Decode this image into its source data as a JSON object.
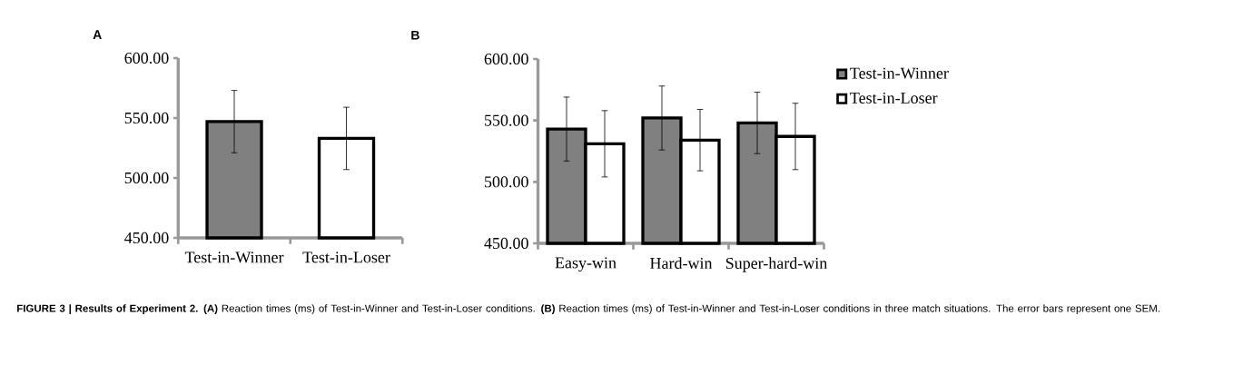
{
  "chart_data": [
    {
      "type": "bar",
      "title": "A",
      "categories": [
        "Test-in-Winner",
        "Test-in-Loser"
      ],
      "values": [
        547,
        533
      ],
      "errors": [
        26,
        26
      ],
      "colors": [
        "#808080",
        "#ffffff"
      ],
      "ylim": [
        450,
        600
      ],
      "yticks": [
        {
          "value": 450,
          "label": "450.00"
        },
        {
          "value": 500,
          "label": "500.00"
        },
        {
          "value": 550,
          "label": "550.00"
        },
        {
          "value": 600,
          "label": "600.00"
        }
      ],
      "annotations": [
        "**FIGURE 3 | Results of Experiment 2. (A)** Reaction times (ms) of Test-in-Winner and Test-in-Loser conditions. **(B)** Reaction times (ms) of Test-in-Winner and Test-in-Loser conditions in three match situations. The error bars represent one SEM."
      ]
    },
    {
      "type": "bar",
      "title": "B",
      "categories": [
        "Easy-win",
        "Hard-win",
        "Super-hard-win"
      ],
      "series": [
        {
          "name": "Test-in-Winner",
          "color": "#808080",
          "values": [
            543,
            552,
            548
          ],
          "errors": [
            26,
            26,
            25
          ]
        },
        {
          "name": "Test-in-Loser",
          "color": "#ffffff",
          "values": [
            531,
            534,
            537
          ],
          "errors": [
            27,
            25,
            27
          ]
        }
      ],
      "ylim": [
        450,
        600
      ],
      "yticks": [
        {
          "value": 450,
          "label": "450.00"
        },
        {
          "value": 500,
          "label": "500.00"
        },
        {
          "value": 550,
          "label": "550.00"
        },
        {
          "value": 600,
          "label": "600.00"
        }
      ],
      "legend": "top right"
    }
  ]
}
